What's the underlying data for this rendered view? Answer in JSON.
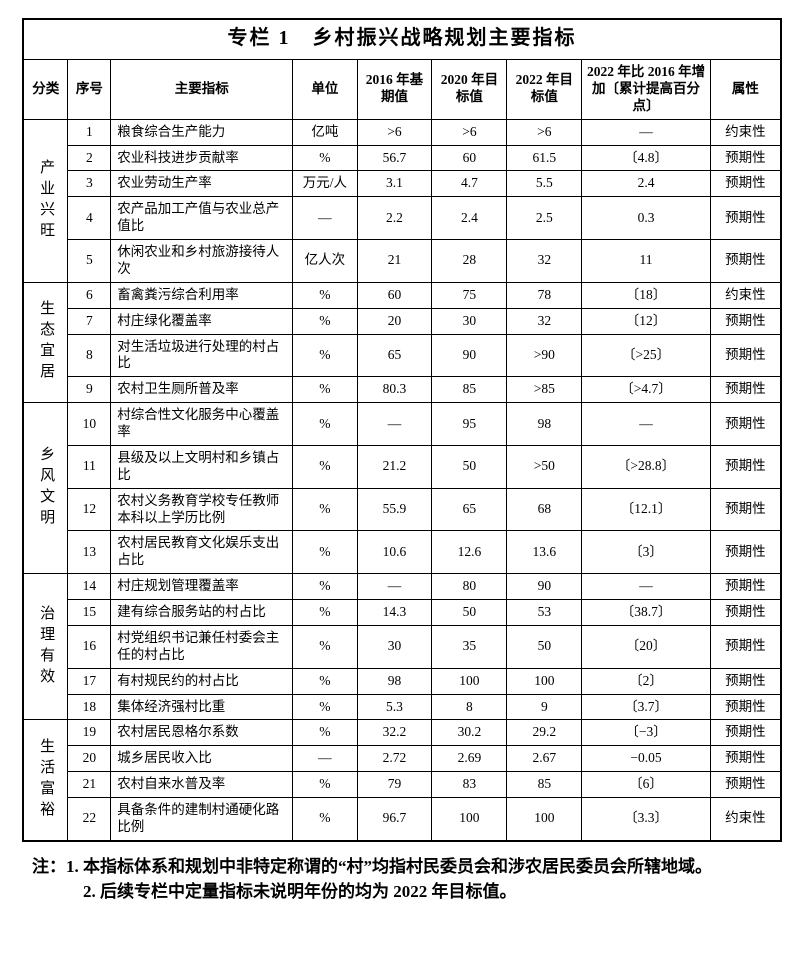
{
  "title": "专栏 1　乡村振兴战略规划主要指标",
  "headers": {
    "category": "分类",
    "seq": "序号",
    "indicator": "主要指标",
    "unit": "单位",
    "y2016": "2016 年基期值",
    "y2020": "2020 年目标值",
    "y2022": "2022 年目标值",
    "increase": "2022 年比 2016 年增加〔累计提高百分点〕",
    "attr": "属性"
  },
  "groups": [
    {
      "category": "产业兴旺",
      "rows": [
        {
          "seq": "1",
          "indicator": "粮食综合生产能力",
          "unit": "亿吨",
          "y2016": ">6",
          "y2020": ">6",
          "y2022": ">6",
          "inc": "—",
          "attr": "约束性"
        },
        {
          "seq": "2",
          "indicator": "农业科技进步贡献率",
          "unit": "%",
          "y2016": "56.7",
          "y2020": "60",
          "y2022": "61.5",
          "inc": "〔4.8〕",
          "attr": "预期性"
        },
        {
          "seq": "3",
          "indicator": "农业劳动生产率",
          "unit": "万元/人",
          "y2016": "3.1",
          "y2020": "4.7",
          "y2022": "5.5",
          "inc": "2.4",
          "attr": "预期性"
        },
        {
          "seq": "4",
          "indicator": "农产品加工产值与农业总产值比",
          "unit": "—",
          "y2016": "2.2",
          "y2020": "2.4",
          "y2022": "2.5",
          "inc": "0.3",
          "attr": "预期性"
        },
        {
          "seq": "5",
          "indicator": "休闲农业和乡村旅游接待人次",
          "unit": "亿人次",
          "y2016": "21",
          "y2020": "28",
          "y2022": "32",
          "inc": "11",
          "attr": "预期性"
        }
      ]
    },
    {
      "category": "生态宜居",
      "rows": [
        {
          "seq": "6",
          "indicator": "畜禽粪污综合利用率",
          "unit": "%",
          "y2016": "60",
          "y2020": "75",
          "y2022": "78",
          "inc": "〔18〕",
          "attr": "约束性"
        },
        {
          "seq": "7",
          "indicator": "村庄绿化覆盖率",
          "unit": "%",
          "y2016": "20",
          "y2020": "30",
          "y2022": "32",
          "inc": "〔12〕",
          "attr": "预期性"
        },
        {
          "seq": "8",
          "indicator": "对生活垃圾进行处理的村占比",
          "unit": "%",
          "y2016": "65",
          "y2020": "90",
          "y2022": ">90",
          "inc": "〔>25〕",
          "attr": "预期性"
        },
        {
          "seq": "9",
          "indicator": "农村卫生厕所普及率",
          "unit": "%",
          "y2016": "80.3",
          "y2020": "85",
          "y2022": ">85",
          "inc": "〔>4.7〕",
          "attr": "预期性"
        }
      ]
    },
    {
      "category": "乡风文明",
      "rows": [
        {
          "seq": "10",
          "indicator": "村综合性文化服务中心覆盖率",
          "unit": "%",
          "y2016": "—",
          "y2020": "95",
          "y2022": "98",
          "inc": "—",
          "attr": "预期性"
        },
        {
          "seq": "11",
          "indicator": "县级及以上文明村和乡镇占比",
          "unit": "%",
          "y2016": "21.2",
          "y2020": "50",
          "y2022": ">50",
          "inc": "〔>28.8〕",
          "attr": "预期性"
        },
        {
          "seq": "12",
          "indicator": "农村义务教育学校专任教师本科以上学历比例",
          "unit": "%",
          "y2016": "55.9",
          "y2020": "65",
          "y2022": "68",
          "inc": "〔12.1〕",
          "attr": "预期性"
        },
        {
          "seq": "13",
          "indicator": "农村居民教育文化娱乐支出占比",
          "unit": "%",
          "y2016": "10.6",
          "y2020": "12.6",
          "y2022": "13.6",
          "inc": "〔3〕",
          "attr": "预期性"
        }
      ]
    },
    {
      "category": "治理有效",
      "rows": [
        {
          "seq": "14",
          "indicator": "村庄规划管理覆盖率",
          "unit": "%",
          "y2016": "—",
          "y2020": "80",
          "y2022": "90",
          "inc": "—",
          "attr": "预期性"
        },
        {
          "seq": "15",
          "indicator": "建有综合服务站的村占比",
          "unit": "%",
          "y2016": "14.3",
          "y2020": "50",
          "y2022": "53",
          "inc": "〔38.7〕",
          "attr": "预期性"
        },
        {
          "seq": "16",
          "indicator": "村党组织书记兼任村委会主任的村占比",
          "unit": "%",
          "y2016": "30",
          "y2020": "35",
          "y2022": "50",
          "inc": "〔20〕",
          "attr": "预期性"
        },
        {
          "seq": "17",
          "indicator": "有村规民约的村占比",
          "unit": "%",
          "y2016": "98",
          "y2020": "100",
          "y2022": "100",
          "inc": "〔2〕",
          "attr": "预期性"
        },
        {
          "seq": "18",
          "indicator": "集体经济强村比重",
          "unit": "%",
          "y2016": "5.3",
          "y2020": "8",
          "y2022": "9",
          "inc": "〔3.7〕",
          "attr": "预期性"
        }
      ]
    },
    {
      "category": "生活富裕",
      "rows": [
        {
          "seq": "19",
          "indicator": "农村居民恩格尔系数",
          "unit": "%",
          "y2016": "32.2",
          "y2020": "30.2",
          "y2022": "29.2",
          "inc": "〔−3〕",
          "attr": "预期性"
        },
        {
          "seq": "20",
          "indicator": "城乡居民收入比",
          "unit": "—",
          "y2016": "2.72",
          "y2020": "2.69",
          "y2022": "2.67",
          "inc": "−0.05",
          "attr": "预期性"
        },
        {
          "seq": "21",
          "indicator": "农村自来水普及率",
          "unit": "%",
          "y2016": "79",
          "y2020": "83",
          "y2022": "85",
          "inc": "〔6〕",
          "attr": "预期性"
        },
        {
          "seq": "22",
          "indicator": "具备条件的建制村通硬化路比例",
          "unit": "%",
          "y2016": "96.7",
          "y2020": "100",
          "y2022": "100",
          "inc": "〔3.3〕",
          "attr": "约束性"
        }
      ]
    }
  ],
  "notes": {
    "prefix": "注：",
    "items": [
      "1. 本指标体系和规划中非特定称谓的“村”均指村民委员会和涉农居民委员会所辖地域。",
      "2. 后续专栏中定量指标未说明年份的均为 2022 年目标值。"
    ]
  }
}
